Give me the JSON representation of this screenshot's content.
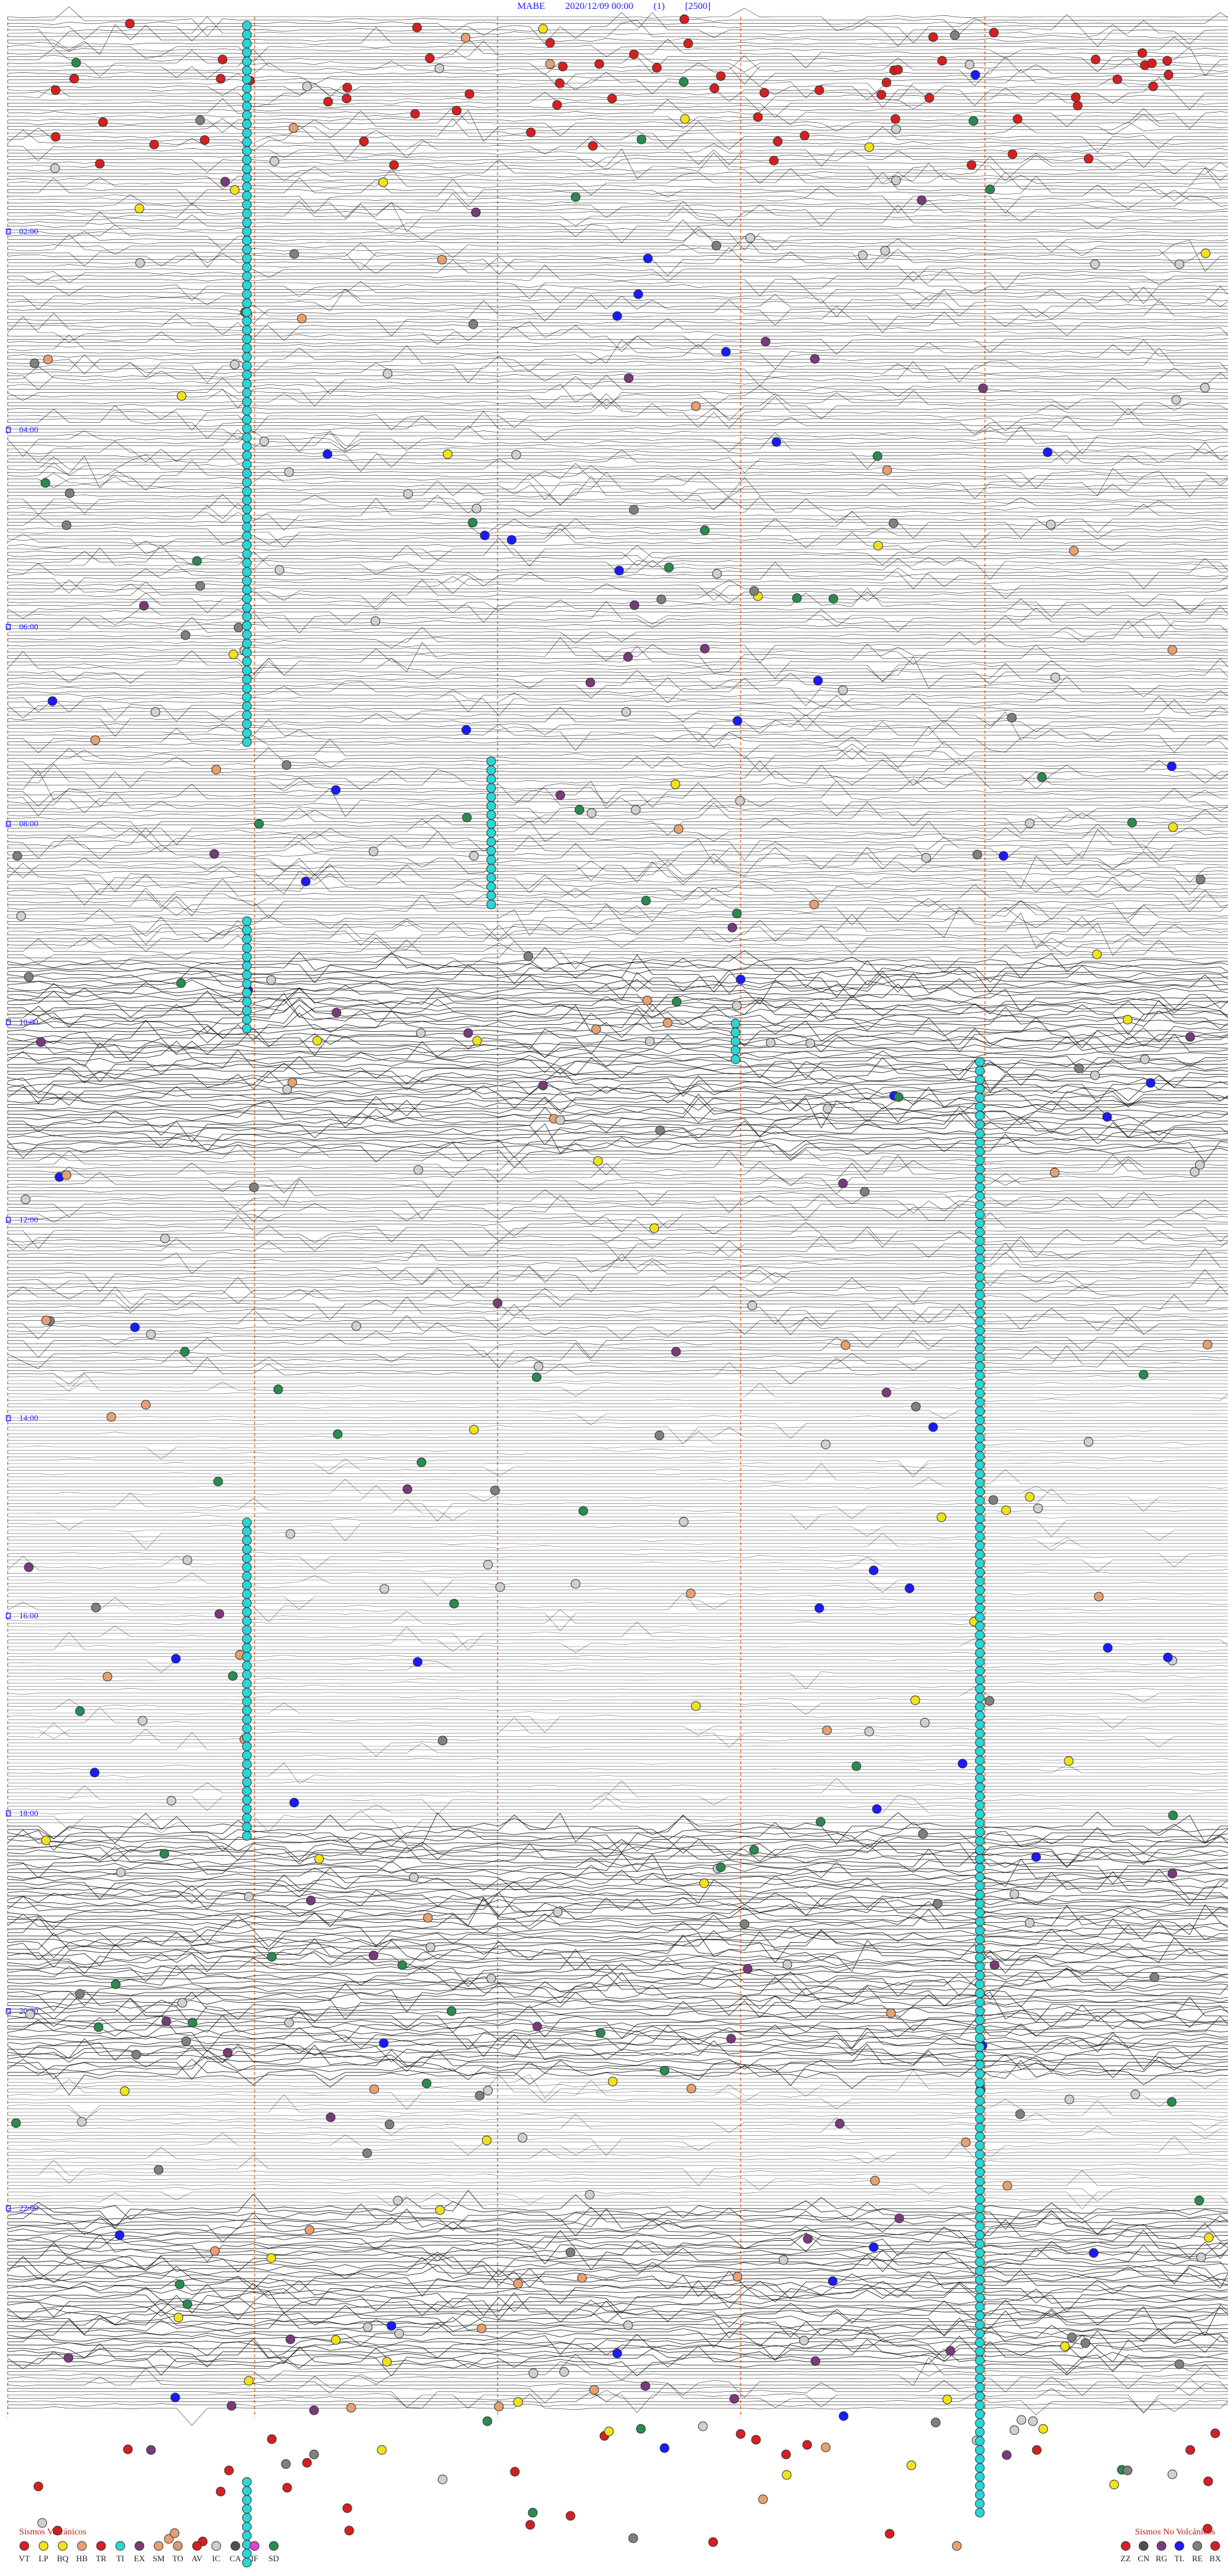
{
  "header": {
    "station": "MABE",
    "datetime": "2020/12/09 00:00",
    "index": "(1)",
    "scale": "[2500]"
  },
  "chart_data": {
    "type": "scatter",
    "time_labels": [
      "02:00",
      "04:00",
      "06:00",
      "08:00",
      "10:00",
      "12:00",
      "14:00",
      "16:00",
      "18:00",
      "20:00",
      "22:00"
    ],
    "colors": {
      "trace": "#111111",
      "hour_tick": "#1a1aff",
      "vertical_marker": "#e8834a",
      "tremor_marker": "#2ad6d6"
    },
    "legend_volcanic": {
      "title": "Sismos Volcánicos",
      "items": [
        {
          "code": "VT",
          "color": "#d42020"
        },
        {
          "code": "LP",
          "color": "#f2e21a"
        },
        {
          "code": "BQ",
          "color": "#f2e21a"
        },
        {
          "code": "HB",
          "color": "#e8a070"
        },
        {
          "code": "TR",
          "color": "#d42020"
        },
        {
          "code": "TI",
          "color": "#2ad6d6"
        },
        {
          "code": "EX",
          "color": "#7a3a7a"
        },
        {
          "code": "SM",
          "color": "#e8a070"
        },
        {
          "code": "TO",
          "color": "#d49a7a"
        },
        {
          "code": "AV",
          "color": "#d42020"
        },
        {
          "code": "IC",
          "color": "#d0d0d0"
        },
        {
          "code": "CA",
          "color": "#505050"
        },
        {
          "code": "IF",
          "color": "#e040e0"
        },
        {
          "code": "SD",
          "color": "#2a8a50"
        }
      ]
    },
    "legend_non_volcanic": {
      "title": "Sismos No Volcánicos",
      "items": [
        {
          "code": "ZZ",
          "color": "#d42020"
        },
        {
          "code": "CN",
          "color": "#505050"
        },
        {
          "code": "RG",
          "color": "#7a3a7a"
        },
        {
          "code": "TL",
          "color": "#1a1aff"
        },
        {
          "code": "RE",
          "color": "#808080"
        },
        {
          "code": "BX",
          "color": "#d42020"
        }
      ]
    }
  }
}
